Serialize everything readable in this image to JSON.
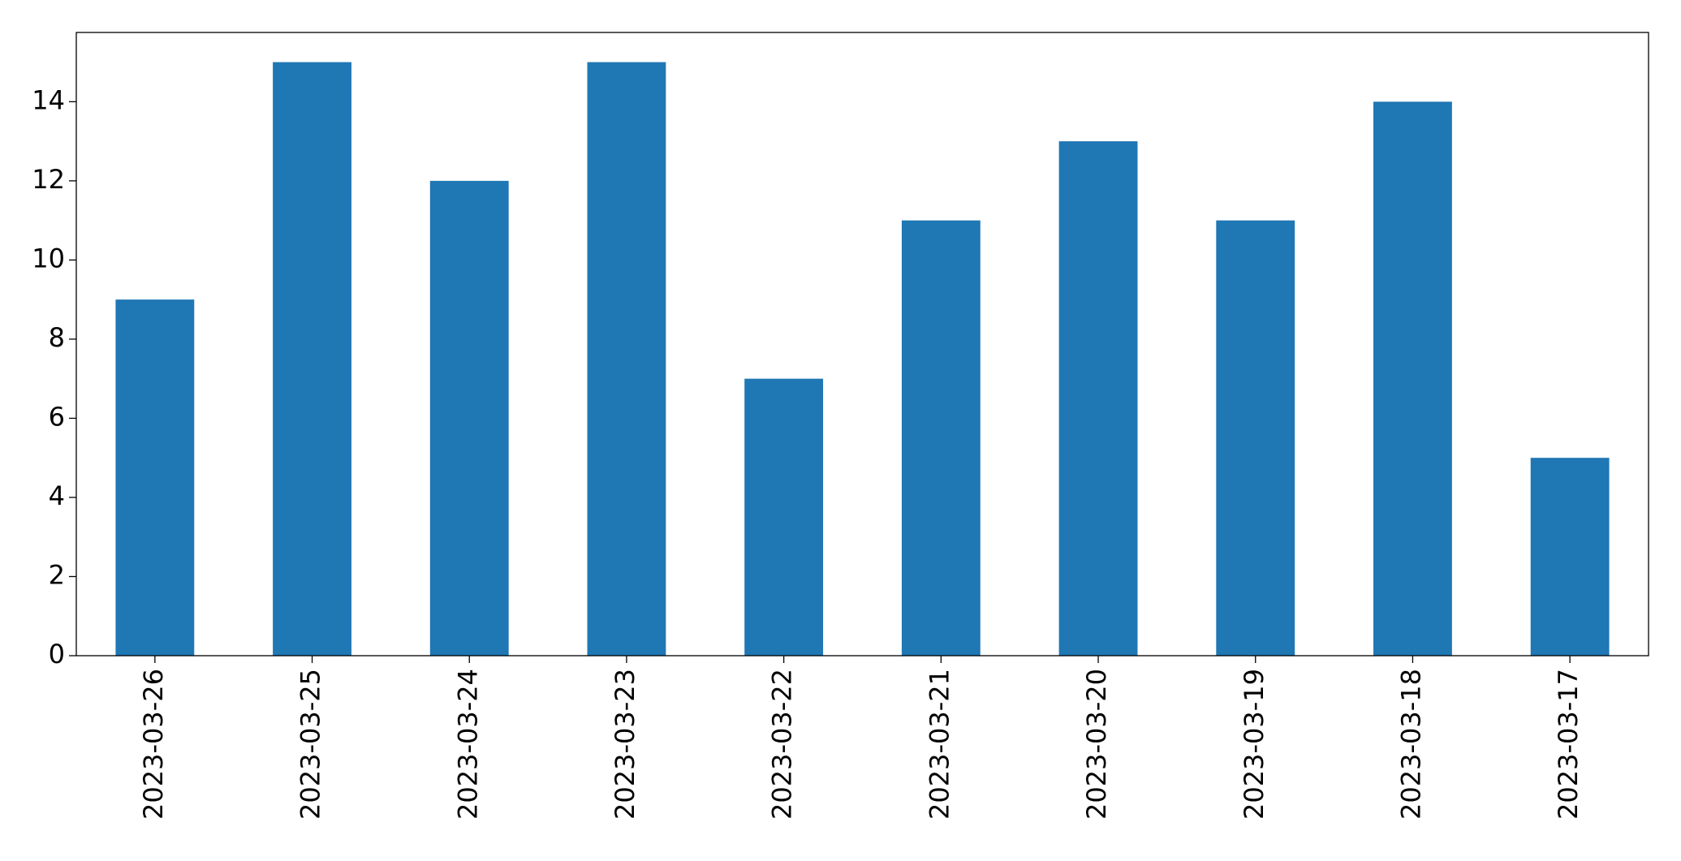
{
  "chart_data": {
    "type": "bar",
    "categories": [
      "2023-03-26",
      "2023-03-25",
      "2023-03-24",
      "2023-03-23",
      "2023-03-22",
      "2023-03-21",
      "2023-03-20",
      "2023-03-19",
      "2023-03-18",
      "2023-03-17"
    ],
    "values": [
      9,
      15,
      12,
      15,
      7,
      11,
      13,
      11,
      14,
      5
    ],
    "color": "#1f77b4",
    "ylim": [
      0,
      15.75
    ],
    "yticks": [
      0,
      2,
      4,
      6,
      8,
      10,
      12,
      14
    ],
    "grid": false
  }
}
